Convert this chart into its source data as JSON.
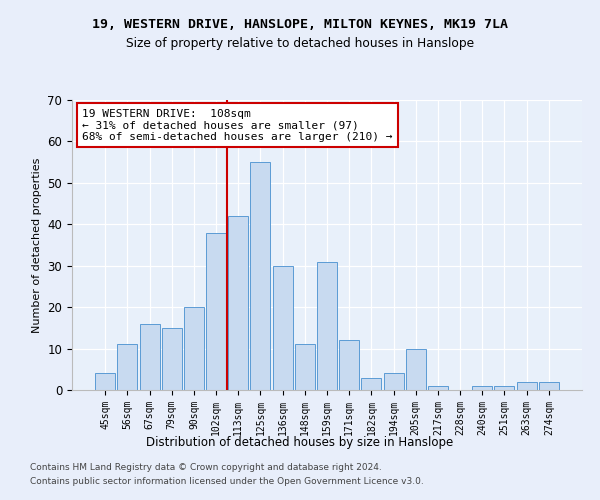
{
  "title1": "19, WESTERN DRIVE, HANSLOPE, MILTON KEYNES, MK19 7LA",
  "title2": "Size of property relative to detached houses in Hanslope",
  "xlabel": "Distribution of detached houses by size in Hanslope",
  "ylabel": "Number of detached properties",
  "categories": [
    "45sqm",
    "56sqm",
    "67sqm",
    "79sqm",
    "90sqm",
    "102sqm",
    "113sqm",
    "125sqm",
    "136sqm",
    "148sqm",
    "159sqm",
    "171sqm",
    "182sqm",
    "194sqm",
    "205sqm",
    "217sqm",
    "228sqm",
    "240sqm",
    "251sqm",
    "263sqm",
    "274sqm"
  ],
  "values": [
    4,
    11,
    16,
    15,
    20,
    38,
    42,
    55,
    30,
    11,
    31,
    12,
    3,
    4,
    10,
    1,
    0,
    1,
    1,
    2,
    2
  ],
  "bar_color": "#c8daf0",
  "bar_edge_color": "#5b9bd5",
  "vline_color": "#cc0000",
  "annotation_text": "19 WESTERN DRIVE:  108sqm\n← 31% of detached houses are smaller (97)\n68% of semi-detached houses are larger (210) →",
  "ylim": [
    0,
    70
  ],
  "yticks": [
    0,
    10,
    20,
    30,
    40,
    50,
    60,
    70
  ],
  "footer1": "Contains HM Land Registry data © Crown copyright and database right 2024.",
  "footer2": "Contains public sector information licensed under the Open Government Licence v3.0.",
  "fig_bg": "#e8eefa",
  "plot_bg": "#e8f0fa"
}
